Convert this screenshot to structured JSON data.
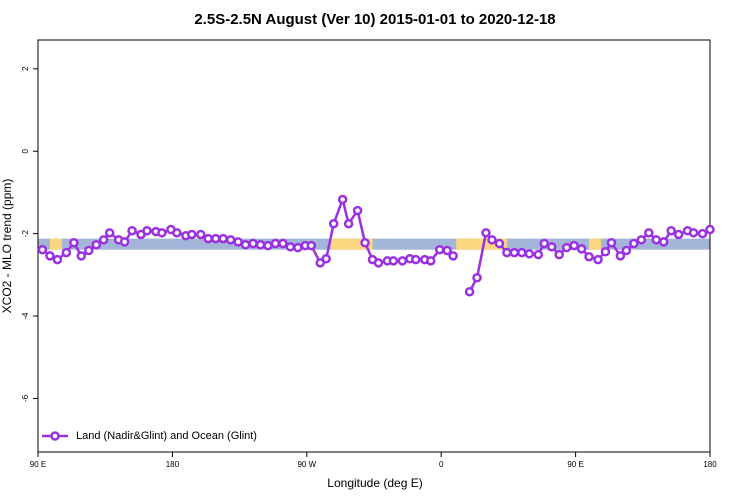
{
  "chart_data": {
    "type": "line",
    "title": "2.5S-2.5N August (Ver 10)   2015-01-01 to 2020-12-18",
    "x_label": "Longitude (deg E)",
    "y_label": "XCO2 - MLO trend (ppm)",
    "xlim": [
      90,
      540
    ],
    "ylim": [
      -7.3,
      2.7
    ],
    "xticks": [
      {
        "value": 90,
        "label": "90 E"
      },
      180,
      {
        "value": 270,
        "label": "90 W"
      },
      {
        "value": 360,
        "label": "0"
      },
      {
        "value": 450,
        "label": "90 E"
      },
      {
        "value": 540,
        "label": "180"
      }
    ],
    "yticks": [
      2,
      0,
      -2,
      -4,
      -6
    ],
    "legend": "bottom-left",
    "ocean_band": {
      "y": [
        -2.39,
        -2.12
      ],
      "color": "#a3b5d9"
    },
    "land_segments": [
      [
        98,
        106
      ],
      [
        286,
        314
      ],
      [
        370,
        404
      ],
      [
        459,
        467
      ]
    ],
    "land_color": "#fdd77f",
    "series": [
      {
        "name": "Land (Nadir&Glint) and Ocean (Glint)",
        "color": "#9b30e0",
        "x": [
          93,
          98,
          103,
          109,
          114,
          119,
          124,
          129,
          134,
          138,
          144,
          148,
          153,
          159,
          163,
          169,
          173,
          179,
          183,
          189,
          193,
          199,
          204,
          209,
          214,
          219,
          224,
          229,
          234,
          239,
          244,
          249,
          254,
          259,
          264,
          269,
          273,
          279,
          283,
          288,
          294,
          298,
          304,
          309,
          314,
          318,
          324,
          328,
          334,
          339,
          343,
          349,
          353,
          359,
          364,
          368,
          373,
          379,
          384,
          390,
          394,
          399,
          404,
          409,
          414,
          419,
          425,
          429,
          434,
          439,
          444,
          449,
          454,
          459,
          465,
          470,
          474,
          480,
          484,
          489,
          494,
          499,
          504,
          509,
          514,
          519,
          525,
          529,
          535,
          540
        ],
        "values": [
          -2.39,
          -2.54,
          -2.63,
          -2.46,
          -2.22,
          -2.54,
          -2.41,
          -2.27,
          -2.15,
          -1.98,
          -2.15,
          -2.2,
          -1.93,
          -2.02,
          -1.93,
          -1.95,
          -1.98,
          -1.9,
          -1.98,
          -2.05,
          -2.02,
          -2.02,
          -2.12,
          -2.12,
          -2.12,
          -2.15,
          -2.2,
          -2.27,
          -2.24,
          -2.27,
          -2.29,
          -2.24,
          -2.24,
          -2.32,
          -2.34,
          -2.29,
          -2.29,
          -2.71,
          -2.61,
          -1.76,
          -1.17,
          -1.76,
          -1.44,
          -2.22,
          -2.63,
          -2.71,
          -2.66,
          -2.66,
          -2.66,
          -2.61,
          -2.63,
          -2.63,
          -2.66,
          -2.39,
          -2.41,
          -2.54,
          null,
          -3.41,
          -3.07,
          -1.98,
          -2.15,
          -2.24,
          -2.46,
          -2.46,
          -2.46,
          -2.49,
          -2.51,
          -2.24,
          -2.32,
          -2.51,
          -2.34,
          -2.29,
          -2.37,
          -2.56,
          -2.63,
          -2.44,
          -2.22,
          -2.54,
          -2.41,
          -2.24,
          -2.15,
          -1.98,
          -2.15,
          -2.2,
          -1.93,
          -2.02,
          -1.93,
          -1.98,
          -2.0,
          -1.9
        ]
      }
    ]
  }
}
